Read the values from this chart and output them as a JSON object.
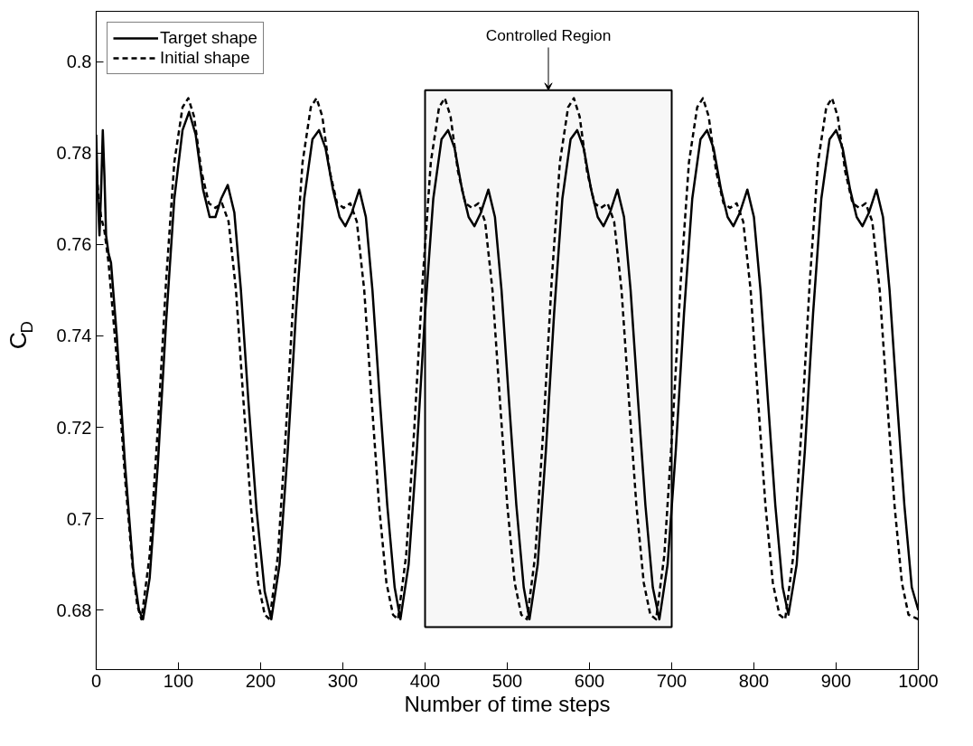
{
  "chart_data": {
    "type": "line",
    "xlabel": "Number of time steps",
    "ylabel": "C$_{D}$",
    "xlim": [
      0,
      1000
    ],
    "xticks": [
      0,
      100,
      200,
      300,
      400,
      500,
      600,
      700,
      800,
      900,
      1000
    ],
    "ylim": [
      0.667,
      0.811
    ],
    "yticks": [
      0.68,
      0.7,
      0.72,
      0.74,
      0.76,
      0.78,
      0.8
    ],
    "grid": false,
    "legend": "top left",
    "bands": [
      {
        "axis": "x",
        "from": 400,
        "to": 700,
        "label": "Controlled Region",
        "color": "#000000"
      }
    ],
    "series": [
      {
        "name": "Target shape",
        "color": "#000000",
        "line_style": "solid",
        "x": [
          0,
          2,
          4,
          6,
          8,
          10,
          12,
          15,
          18,
          25,
          35,
          45,
          52,
          57,
          65,
          75,
          85,
          95,
          105,
          113,
          121,
          130,
          138,
          145,
          152,
          160,
          168,
          176,
          185,
          195,
          205,
          213,
          223,
          233,
          243,
          253,
          263,
          271,
          279,
          288,
          296,
          303,
          311,
          320,
          328,
          336,
          345,
          354,
          363,
          370,
          380,
          390,
          400,
          410,
          420,
          428,
          436,
          445,
          453,
          460,
          468,
          477,
          485,
          493,
          502,
          511,
          520,
          527,
          537,
          547,
          557,
          567,
          577,
          585,
          593,
          602,
          610,
          617,
          625,
          634,
          642,
          650,
          659,
          668,
          677,
          685,
          695,
          705,
          715,
          725,
          735,
          743,
          751,
          760,
          768,
          775,
          783,
          792,
          800,
          808,
          817,
          826,
          835,
          842,
          852,
          862,
          872,
          882,
          892,
          900,
          908,
          917,
          925,
          932,
          940,
          949,
          957,
          965,
          974,
          983,
          992,
          1000
        ],
        "values": [
          0.784,
          0.77,
          0.762,
          0.772,
          0.785,
          0.775,
          0.762,
          0.758,
          0.756,
          0.74,
          0.712,
          0.689,
          0.68,
          0.678,
          0.687,
          0.712,
          0.743,
          0.77,
          0.785,
          0.789,
          0.784,
          0.772,
          0.766,
          0.766,
          0.77,
          0.773,
          0.767,
          0.75,
          0.726,
          0.702,
          0.684,
          0.678,
          0.69,
          0.715,
          0.745,
          0.77,
          0.783,
          0.785,
          0.781,
          0.772,
          0.766,
          0.764,
          0.767,
          0.772,
          0.766,
          0.75,
          0.726,
          0.703,
          0.685,
          0.678,
          0.69,
          0.715,
          0.745,
          0.77,
          0.783,
          0.785,
          0.781,
          0.772,
          0.766,
          0.764,
          0.767,
          0.772,
          0.766,
          0.75,
          0.726,
          0.703,
          0.685,
          0.678,
          0.69,
          0.715,
          0.745,
          0.77,
          0.783,
          0.785,
          0.781,
          0.772,
          0.766,
          0.764,
          0.767,
          0.772,
          0.766,
          0.75,
          0.726,
          0.703,
          0.685,
          0.678,
          0.69,
          0.715,
          0.745,
          0.77,
          0.783,
          0.785,
          0.781,
          0.772,
          0.766,
          0.764,
          0.767,
          0.772,
          0.766,
          0.75,
          0.726,
          0.703,
          0.685,
          0.679,
          0.69,
          0.715,
          0.745,
          0.77,
          0.783,
          0.785,
          0.781,
          0.772,
          0.766,
          0.764,
          0.767,
          0.772,
          0.766,
          0.75,
          0.726,
          0.703,
          0.685,
          0.68
        ]
      },
      {
        "name": "Initial shape",
        "color": "#000000",
        "line_style": "dashed",
        "x": [
          0,
          3,
          6,
          10,
          15,
          25,
          35,
          45,
          50,
          55,
          65,
          75,
          85,
          95,
          105,
          112,
          119,
          128,
          137,
          145,
          153,
          161,
          170,
          179,
          188,
          197,
          205,
          211,
          221,
          231,
          241,
          251,
          261,
          268,
          275,
          284,
          293,
          301,
          309,
          317,
          326,
          335,
          344,
          353,
          361,
          367,
          377,
          387,
          397,
          407,
          417,
          424,
          431,
          440,
          449,
          457,
          465,
          473,
          482,
          491,
          500,
          509,
          517,
          524,
          534,
          544,
          554,
          564,
          574,
          581,
          588,
          597,
          606,
          614,
          622,
          630,
          639,
          648,
          657,
          666,
          674,
          681,
          691,
          701,
          711,
          721,
          731,
          738,
          745,
          754,
          763,
          771,
          779,
          787,
          796,
          805,
          814,
          823,
          831,
          838,
          848,
          858,
          868,
          878,
          888,
          895,
          902,
          911,
          920,
          928,
          936,
          944,
          953,
          962,
          971,
          980,
          988,
          1000
        ],
        "values": [
          0.777,
          0.77,
          0.766,
          0.763,
          0.756,
          0.735,
          0.709,
          0.688,
          0.681,
          0.678,
          0.692,
          0.72,
          0.752,
          0.778,
          0.79,
          0.792,
          0.788,
          0.776,
          0.769,
          0.768,
          0.769,
          0.765,
          0.75,
          0.726,
          0.703,
          0.686,
          0.679,
          0.678,
          0.692,
          0.72,
          0.752,
          0.778,
          0.79,
          0.792,
          0.788,
          0.776,
          0.769,
          0.768,
          0.769,
          0.765,
          0.75,
          0.726,
          0.703,
          0.686,
          0.679,
          0.678,
          0.692,
          0.72,
          0.752,
          0.778,
          0.79,
          0.792,
          0.788,
          0.776,
          0.769,
          0.768,
          0.769,
          0.765,
          0.75,
          0.726,
          0.703,
          0.686,
          0.679,
          0.678,
          0.692,
          0.72,
          0.752,
          0.778,
          0.79,
          0.792,
          0.788,
          0.776,
          0.769,
          0.768,
          0.769,
          0.765,
          0.75,
          0.726,
          0.703,
          0.686,
          0.679,
          0.678,
          0.692,
          0.72,
          0.752,
          0.778,
          0.79,
          0.792,
          0.788,
          0.776,
          0.769,
          0.768,
          0.769,
          0.765,
          0.75,
          0.726,
          0.703,
          0.686,
          0.679,
          0.678,
          0.692,
          0.72,
          0.752,
          0.778,
          0.79,
          0.792,
          0.788,
          0.776,
          0.769,
          0.768,
          0.769,
          0.765,
          0.75,
          0.726,
          0.703,
          0.686,
          0.679,
          0.678
        ]
      }
    ]
  }
}
